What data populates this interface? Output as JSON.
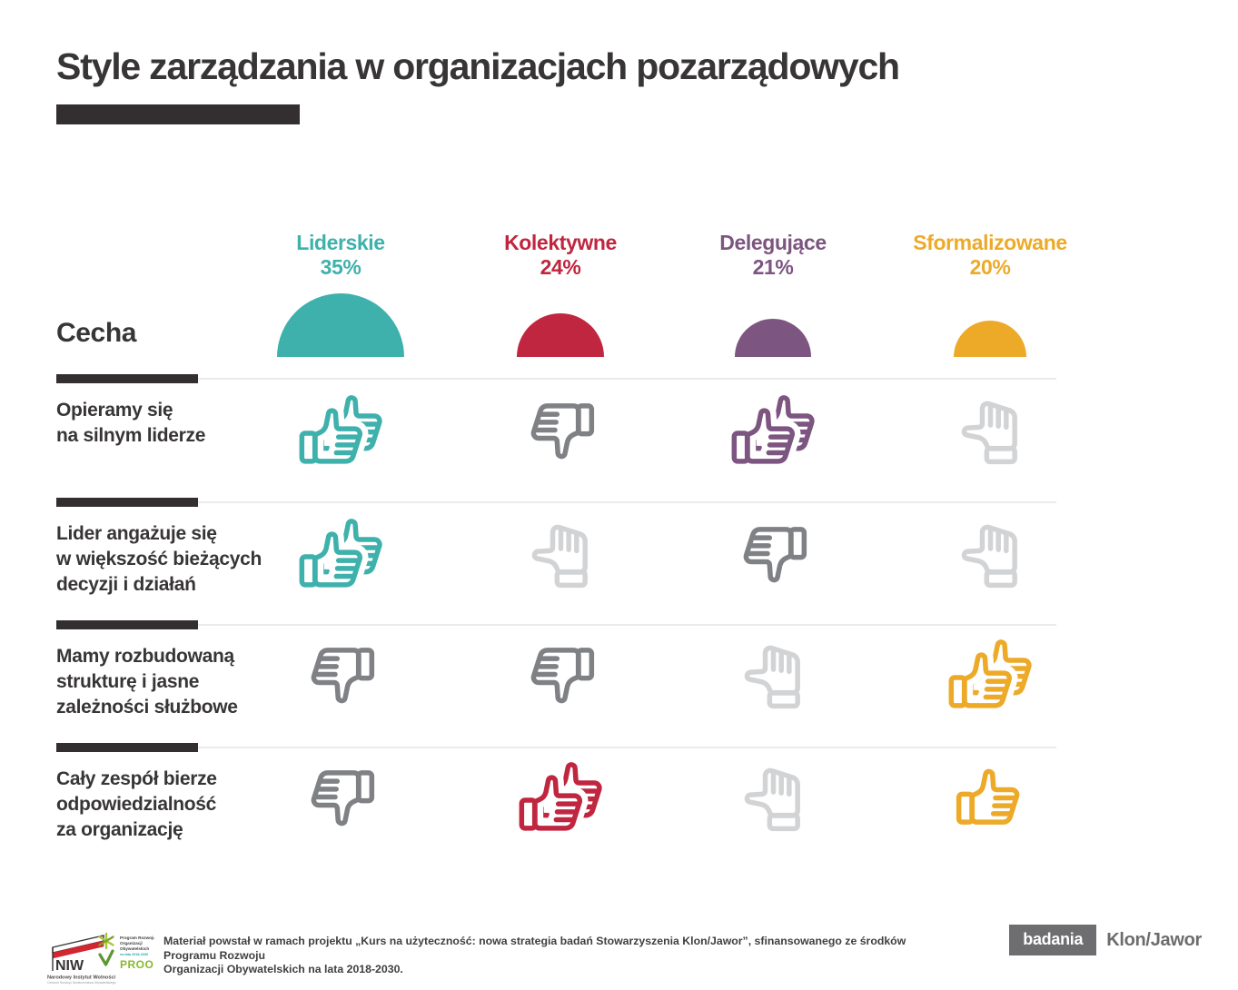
{
  "title": "Style zarządzania w organizacjach pozarządowych",
  "corner_label": "Cecha",
  "columns": [
    {
      "name": "Liderskie",
      "pct": "35%",
      "value": 35,
      "color": "#3eb1ac"
    },
    {
      "name": "Kolektywne",
      "pct": "24%",
      "value": 24,
      "color": "#c0263f"
    },
    {
      "name": "Delegujące",
      "pct": "21%",
      "value": 21,
      "color": "#7c5580"
    },
    {
      "name": "Sformalizowane",
      "pct": "20%",
      "value": 20,
      "color": "#ecaa28"
    }
  ],
  "icon_palette": {
    "thumbs_down": "#7f8184",
    "thumb_neutral": "#d2d3d5"
  },
  "rows": [
    {
      "label": "Opieramy się\nna silnym liderze",
      "cells": [
        {
          "icon": "thumbs-up-double",
          "color": "#3eb1ac"
        },
        {
          "icon": "thumbs-down",
          "color": "#7f8184"
        },
        {
          "icon": "thumbs-up-double",
          "color": "#7c5580"
        },
        {
          "icon": "thumb-neutral",
          "color": "#d2d3d5"
        }
      ]
    },
    {
      "label": "Lider angażuje się\nw większość bieżących\ndecyzji i działań",
      "cells": [
        {
          "icon": "thumbs-up-double",
          "color": "#3eb1ac"
        },
        {
          "icon": "thumb-neutral",
          "color": "#d2d3d5"
        },
        {
          "icon": "thumbs-down",
          "color": "#7f8184"
        },
        {
          "icon": "thumb-neutral",
          "color": "#d2d3d5"
        }
      ]
    },
    {
      "label": "Mamy rozbudowaną\nstrukturę i jasne\nzależności służbowe",
      "cells": [
        {
          "icon": "thumbs-down",
          "color": "#7f8184"
        },
        {
          "icon": "thumbs-down",
          "color": "#7f8184"
        },
        {
          "icon": "thumb-neutral",
          "color": "#d2d3d5"
        },
        {
          "icon": "thumbs-up-double",
          "color": "#ecaa28"
        }
      ]
    },
    {
      "label": "Cały zespół  bierze\nodpowiedzialność\nza organizację",
      "cells": [
        {
          "icon": "thumbs-down",
          "color": "#7f8184"
        },
        {
          "icon": "thumbs-up-double",
          "color": "#c0263f"
        },
        {
          "icon": "thumb-neutral",
          "color": "#d2d3d5"
        },
        {
          "icon": "thumbs-up",
          "color": "#ecaa28"
        }
      ]
    }
  ],
  "chart_data": {
    "type": "table",
    "title": "Style zarządzania w organizacjach pozarządowych",
    "columns": [
      "Liderskie",
      "Kolektywne",
      "Delegujące",
      "Sformalizowane"
    ],
    "column_values_pct": [
      35,
      24,
      21,
      20
    ],
    "row_label_header": "Cecha",
    "rows": [
      "Opieramy się na silnym liderze",
      "Lider angażuje się w większość bieżących decyzji i działań",
      "Mamy rozbudowaną strukturę i jasne zależności służbowe",
      "Cały zespół bierze odpowiedzialność za organizację"
    ],
    "cells": [
      [
        "strong-yes",
        "no",
        "strong-yes",
        "neutral"
      ],
      [
        "strong-yes",
        "neutral",
        "no",
        "neutral"
      ],
      [
        "no",
        "no",
        "neutral",
        "strong-yes"
      ],
      [
        "no",
        "strong-yes",
        "neutral",
        "yes"
      ]
    ],
    "legend": "semicircle radius proportional to percentage"
  },
  "footer": {
    "credit": "Materiał powstał w ramach projektu „Kurs na użyteczność: nowa strategia badań Stowarzyszenia Klon/Jawor”, sfinansowanego ze środków Programu Rozwoju\nOrganizacji Obywatelskich na lata 2018-2030.",
    "badge": "badania",
    "brand": "Klon/Jawor",
    "niw": {
      "name": "NIW",
      "caption": "Narodowy Instytut Wolności",
      "subcaption": "Centrum Rozwoju Społeczeństwa Obywatelskiego"
    },
    "proo": {
      "lines": [
        "Program Rozwoju",
        "Organizacji",
        "Obywatelskich"
      ],
      "period": "na lata 2018-2030",
      "name": "PROO"
    }
  }
}
